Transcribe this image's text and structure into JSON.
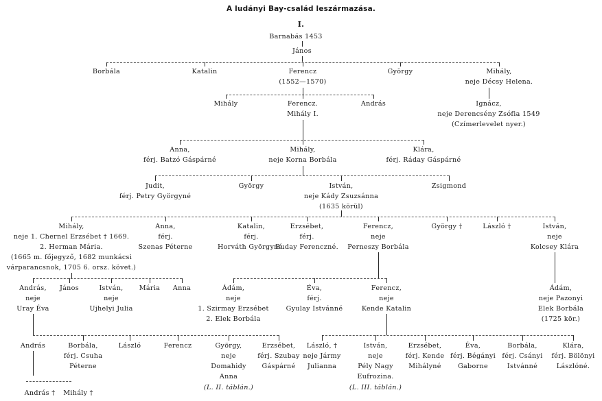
{
  "title": "A ludányi Bay-család leszármazása.",
  "section": "I.",
  "nodes": [
    {
      "id": "barnabas",
      "lines": [
        "Barnabás 1453"
      ]
    },
    {
      "id": "janos1",
      "lines": [
        "János"
      ]
    },
    {
      "id": "borbala1",
      "lines": [
        "Borbála"
      ]
    },
    {
      "id": "katalin1",
      "lines": [
        "Katalin"
      ]
    },
    {
      "id": "ferencz1",
      "lines": [
        "Ferencz",
        "(1552—1570)"
      ]
    },
    {
      "id": "gyorgy1",
      "lines": [
        "György"
      ]
    },
    {
      "id": "mihaly1",
      "lines": [
        "Mihály,",
        "neje Décsy Helena."
      ]
    },
    {
      "id": "mihaly2",
      "lines": [
        "Mihály"
      ]
    },
    {
      "id": "ferencz2",
      "lines": [
        "Ferencz.",
        "Mihály I."
      ]
    },
    {
      "id": "andras1",
      "lines": [
        "András"
      ]
    },
    {
      "id": "ignacz",
      "lines": [
        "Ignácz,",
        "neje Derencsény Zsófia 1549",
        "(Czímerlevelet nyer.)"
      ]
    },
    {
      "id": "anna1",
      "lines": [
        "Anna,",
        "férj. Batzó Gáspárné"
      ]
    },
    {
      "id": "mihaly3",
      "lines": [
        "Mihály,",
        "neje Korna Borbála"
      ]
    },
    {
      "id": "klara1",
      "lines": [
        "Klára,",
        "férj. Ráday Gáspárné"
      ]
    },
    {
      "id": "judit",
      "lines": [
        "Judit,",
        "férj. Petry Györgyné"
      ]
    },
    {
      "id": "gyorgy2",
      "lines": [
        "György"
      ]
    },
    {
      "id": "istvan1",
      "lines": [
        "István,",
        "neje Kády Zsuzsánna",
        "(1635 körül)"
      ]
    },
    {
      "id": "zsigmond",
      "lines": [
        "Zsigmond"
      ]
    },
    {
      "id": "mihaly4",
      "lines": [
        "Mihály,",
        "neje 1. Chernel Erzsébet † 1669.",
        "2. Herman Mária.",
        "(1665 m. főjegyző, 1682 munkácsi",
        "várparancsnok, 1705 6. orsz. követ.)"
      ]
    },
    {
      "id": "anna2",
      "lines": [
        "Anna,",
        "férj.",
        "Szenas Péterne"
      ]
    },
    {
      "id": "katalin2",
      "lines": [
        "Katalin,",
        "férj.",
        "Horváth Györgyné."
      ]
    },
    {
      "id": "erzsebet1",
      "lines": [
        "Erzsébet,",
        "férj.",
        "Buday Ferenczné."
      ]
    },
    {
      "id": "ferencz3",
      "lines": [
        "Ferencz,",
        "neje",
        "Perneszy Borbála"
      ]
    },
    {
      "id": "gyorgy3",
      "lines": [
        "György †"
      ]
    },
    {
      "id": "laszlo1",
      "lines": [
        "László †"
      ]
    },
    {
      "id": "istvan2",
      "lines": [
        "István,",
        "neje",
        "Kolcsey Klára"
      ]
    },
    {
      "id": "andras2",
      "lines": [
        "András,",
        "neje",
        "Uray Éva"
      ]
    },
    {
      "id": "janos2",
      "lines": [
        "János"
      ]
    },
    {
      "id": "istvan3",
      "lines": [
        "István,",
        "neje",
        "Ujhelyi Julia"
      ]
    },
    {
      "id": "maria",
      "lines": [
        "Mária"
      ]
    },
    {
      "id": "anna3",
      "lines": [
        "Anna"
      ]
    },
    {
      "id": "adam1",
      "lines": [
        "Ádám,",
        "neje",
        "1. Szirmay Erzsébet",
        "2. Elek Borbála"
      ]
    },
    {
      "id": "eva1",
      "lines": [
        "Éva,",
        "férj.",
        "Gyulay Istvánné"
      ]
    },
    {
      "id": "ferencz4",
      "lines": [
        "Ferencz,",
        "neje",
        "Kende Katalin"
      ]
    },
    {
      "id": "adam2",
      "lines": [
        "Ádám,",
        "neje Pazonyi",
        "Elek Borbála",
        "(1725 kör.)"
      ]
    },
    {
      "id": "andras3",
      "lines": [
        "András"
      ]
    },
    {
      "id": "borbala2",
      "lines": [
        "Borbála,",
        "férj. Csuha",
        "Péterne"
      ]
    },
    {
      "id": "laszlo2",
      "lines": [
        "László"
      ]
    },
    {
      "id": "ferencz5",
      "lines": [
        "Ferencz"
      ]
    },
    {
      "id": "gyorgy4",
      "lines": [
        "György,",
        "neje",
        "Domahidy",
        "Anna"
      ]
    },
    {
      "id": "erzsebet2",
      "lines": [
        "Erzsébet,",
        "férj. Szubay",
        "Gáspárné"
      ]
    },
    {
      "id": "laszlo3",
      "lines": [
        "László, †",
        "neje Jármy",
        "Julianna"
      ]
    },
    {
      "id": "istvan4",
      "lines": [
        "István,",
        "neje",
        "Pély Nagy",
        "Eufrozina."
      ]
    },
    {
      "id": "erzsebet3",
      "lines": [
        "Erzsébet,",
        "férj. Kende",
        "Mihályné"
      ]
    },
    {
      "id": "eva2",
      "lines": [
        "Éva,",
        "férj. Bégányi",
        "Gaborne"
      ]
    },
    {
      "id": "borbala3",
      "lines": [
        "Borbála,",
        "férj. Csányi",
        "Istvánné"
      ]
    },
    {
      "id": "klara2",
      "lines": [
        "Klára,",
        "férj. Bölönyi",
        "Lászlóné."
      ]
    },
    {
      "id": "andras4",
      "lines": [
        "András †"
      ]
    },
    {
      "id": "mihaly5",
      "lines": [
        "Mihály †"
      ]
    }
  ],
  "notes": [
    {
      "id": "note1",
      "text": "(L. II. táblán.)"
    },
    {
      "id": "note2",
      "text": "(L. III. táblán.)"
    }
  ]
}
